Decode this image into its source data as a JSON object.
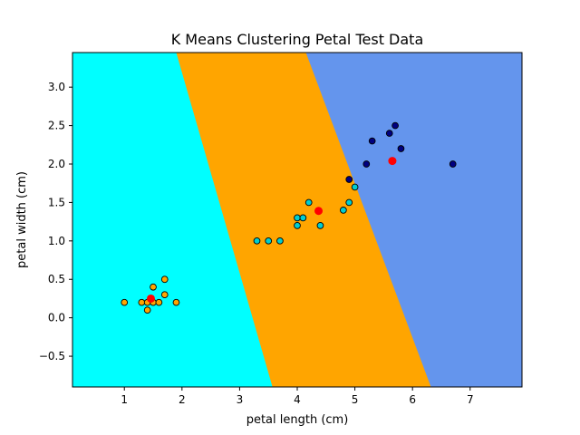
{
  "chart_data": {
    "type": "scatter",
    "title": "K Means Clustering Petal Test Data",
    "xlabel": "petal length (cm)",
    "ylabel": "petal width (cm)",
    "xlim": [
      0.1,
      7.9
    ],
    "ylim": [
      -0.9,
      3.45
    ],
    "x_ticks": [
      1,
      2,
      3,
      4,
      5,
      6,
      7
    ],
    "x_tick_labels": [
      "1",
      "2",
      "3",
      "4",
      "5",
      "6",
      "7"
    ],
    "y_ticks": [
      -0.5,
      0.0,
      0.5,
      1.0,
      1.5,
      2.0,
      2.5,
      3.0
    ],
    "y_tick_labels": [
      "−0.5",
      "0.0",
      "0.5",
      "1.0",
      "1.5",
      "2.0",
      "2.5",
      "3.0"
    ],
    "grid": false,
    "legend": "none",
    "decision_regions": [
      {
        "color": "#00ffff",
        "boundary_right": [
          [
            3.57,
            -0.9
          ],
          [
            1.9,
            3.45
          ]
        ]
      },
      {
        "color": "#ffa500",
        "boundary_right": [
          [
            6.32,
            -0.9
          ],
          [
            4.15,
            3.45
          ]
        ]
      },
      {
        "color": "#6495ed"
      }
    ],
    "series": [
      {
        "color": "#ffa500",
        "points": [
          [
            1.0,
            0.2
          ],
          [
            1.3,
            0.2
          ],
          [
            1.4,
            0.2
          ],
          [
            1.4,
            0.1
          ],
          [
            1.5,
            0.2
          ],
          [
            1.5,
            0.4
          ],
          [
            1.6,
            0.2
          ],
          [
            1.7,
            0.5
          ],
          [
            1.7,
            0.3
          ],
          [
            1.9,
            0.2
          ]
        ]
      },
      {
        "color": "#00ced1",
        "points": [
          [
            3.3,
            1.0
          ],
          [
            3.5,
            1.0
          ],
          [
            3.7,
            1.0
          ],
          [
            4.0,
            1.3
          ],
          [
            4.0,
            1.2
          ],
          [
            4.1,
            1.3
          ],
          [
            4.2,
            1.5
          ],
          [
            4.4,
            1.2
          ],
          [
            4.8,
            1.4
          ],
          [
            4.9,
            1.5
          ],
          [
            5.0,
            1.7
          ]
        ]
      },
      {
        "color": "#000080",
        "points": [
          [
            4.9,
            1.8
          ],
          [
            5.2,
            2.0
          ],
          [
            5.3,
            2.3
          ],
          [
            5.6,
            2.4
          ],
          [
            5.7,
            2.5
          ],
          [
            5.8,
            2.2
          ],
          [
            6.7,
            2.0
          ]
        ]
      }
    ],
    "centroids": {
      "color": "#ff0000",
      "points": [
        [
          1.46,
          0.25
        ],
        [
          4.37,
          1.39
        ],
        [
          5.65,
          2.04
        ]
      ]
    }
  }
}
